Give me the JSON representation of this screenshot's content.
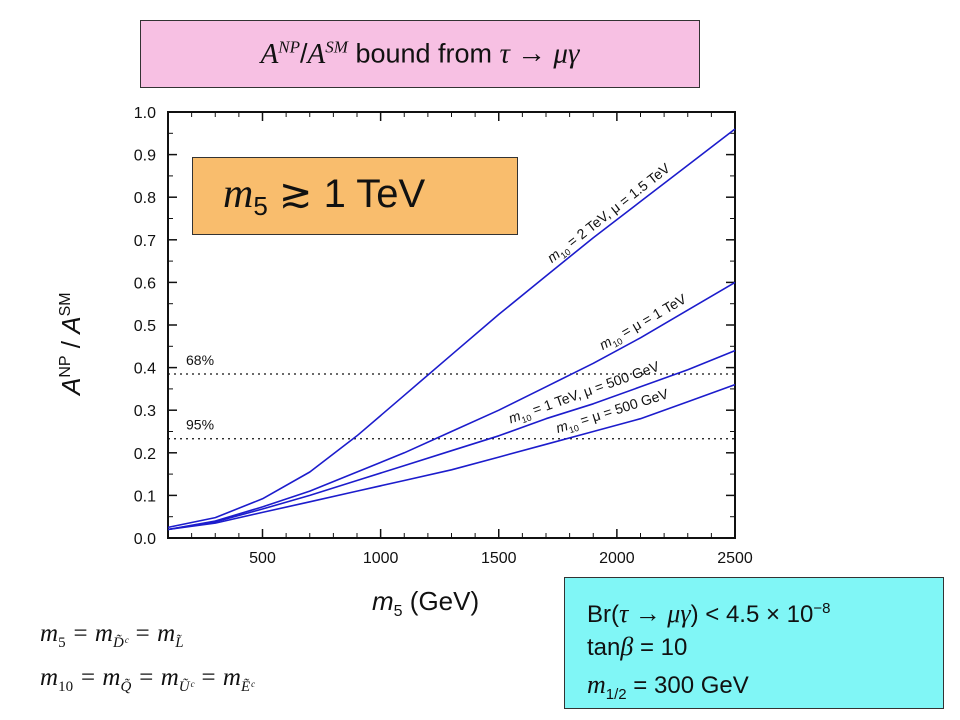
{
  "title": {
    "lhs": "A",
    "np": "NP",
    "sep": "/",
    "rhs": "A",
    "sm": "SM",
    "middle": " bound from ",
    "process": "τ → μγ"
  },
  "callout": {
    "mass": "m",
    "mass_sub": "5",
    "relation": " ≳ ",
    "value": "1 TeV"
  },
  "params": {
    "br_prefix": "Br(",
    "br_process": "τ → μγ",
    "br_rest": ") < 4.5 × 10",
    "br_exp": "−8",
    "tan_prefix": "tan",
    "tan_beta": "β",
    "tan_rest": " = 10",
    "m_half": "m",
    "m_half_sub": "1/2",
    "m_half_rest": " = 300 GeV"
  },
  "definitions": {
    "line1_m": "m",
    "line1_sub": "5",
    "line1_eq1": " = m",
    "line1_sub2": "D̃ᶜ",
    "line1_eq2": " = m",
    "line1_sub3": "L̃",
    "line2_m": "m",
    "line2_sub": "10",
    "line2_eq1": " = m",
    "line2_sub2": "Q̃",
    "line2_eq2": " = m",
    "line2_sub3": "Ũᶜ",
    "line2_eq3": " = m",
    "line2_sub4": "Ẽᶜ"
  },
  "chart_data": {
    "type": "line",
    "xlabel_italic": "m",
    "xlabel_sub": "5",
    "xlabel_rest": " (GeV)",
    "ylabel_a1": "A",
    "ylabel_np": "NP",
    "ylabel_sep": " / ",
    "ylabel_a2": "A",
    "ylabel_sm": "SM",
    "xlim": [
      100,
      2500
    ],
    "ylim": [
      0.0,
      1.0
    ],
    "x_ticks": [
      500,
      1000,
      1500,
      2000,
      2500
    ],
    "x_tick_labels": [
      "500",
      "1000",
      "1500",
      "2000",
      "2500"
    ],
    "y_ticks": [
      0.0,
      0.1,
      0.2,
      0.3,
      0.4,
      0.5,
      0.6,
      0.7,
      0.8,
      0.9,
      1.0
    ],
    "y_tick_labels": [
      "0.0",
      "0.1",
      "0.2",
      "0.3",
      "0.4",
      "0.5",
      "0.6",
      "0.7",
      "0.8",
      "0.9",
      "1.0"
    ],
    "grid": false,
    "line_color": "#1c1ccc",
    "series": [
      {
        "name": "m10 = 2 TeV, μ = 1.5 TeV",
        "label_m": "m",
        "label_sub": "10",
        "label_rest": " = 2 TeV, μ = 1.5 TeV",
        "x": [
          100,
          300,
          500,
          700,
          900,
          1100,
          1300,
          1500,
          1700,
          1900,
          2100,
          2300,
          2500
        ],
        "y": [
          0.025,
          0.048,
          0.092,
          0.155,
          0.24,
          0.335,
          0.43,
          0.525,
          0.615,
          0.705,
          0.79,
          0.875,
          0.96
        ]
      },
      {
        "name": "m10 = μ = 1 TeV",
        "label_m": "m",
        "label_sub": "10",
        "label_rest": " = μ = 1 TeV",
        "x": [
          100,
          300,
          500,
          700,
          900,
          1100,
          1300,
          1500,
          1700,
          1900,
          2100,
          2300,
          2500
        ],
        "y": [
          0.02,
          0.04,
          0.073,
          0.11,
          0.155,
          0.2,
          0.25,
          0.3,
          0.355,
          0.41,
          0.47,
          0.535,
          0.6
        ]
      },
      {
        "name": "m10 = 1 TeV, μ = 500 GeV",
        "label_m": "m",
        "label_sub": "10",
        "label_rest": " = 1 TeV, μ = 500 GeV",
        "x": [
          100,
          300,
          500,
          700,
          900,
          1100,
          1300,
          1500,
          1700,
          1900,
          2100,
          2300,
          2500
        ],
        "y": [
          0.02,
          0.038,
          0.068,
          0.1,
          0.135,
          0.17,
          0.205,
          0.24,
          0.28,
          0.315,
          0.355,
          0.395,
          0.44
        ]
      },
      {
        "name": "m10 = μ = 500 GeV",
        "label_m": "m",
        "label_sub": "10",
        "label_rest": " = μ = 500 GeV",
        "x": [
          100,
          300,
          500,
          700,
          900,
          1100,
          1300,
          1500,
          1700,
          1900,
          2100,
          2300,
          2500
        ],
        "y": [
          0.02,
          0.035,
          0.06,
          0.085,
          0.11,
          0.135,
          0.16,
          0.19,
          0.22,
          0.25,
          0.28,
          0.32,
          0.36
        ]
      }
    ],
    "reference_lines": [
      {
        "label": "68%",
        "y": 0.385
      },
      {
        "label": "95%",
        "y": 0.233
      }
    ]
  }
}
